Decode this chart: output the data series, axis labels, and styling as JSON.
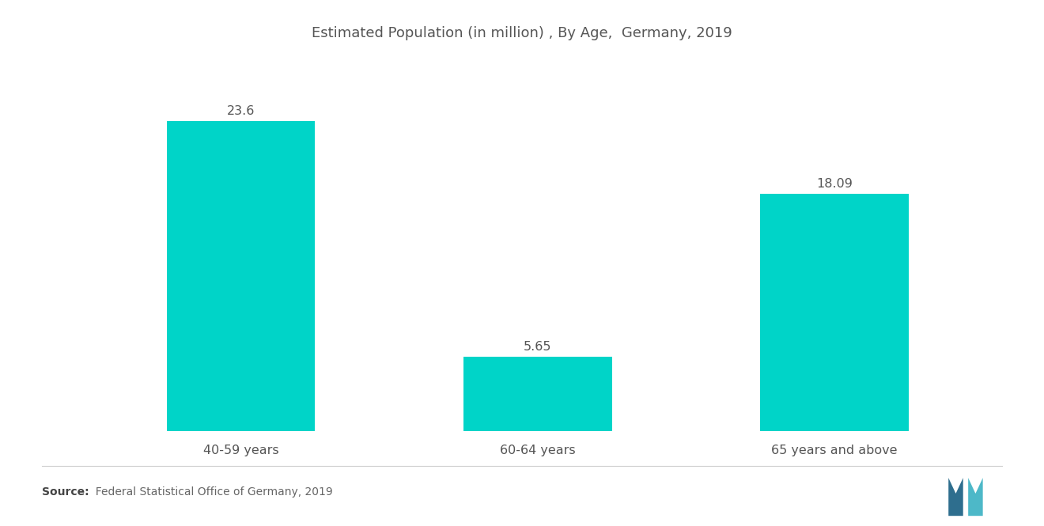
{
  "title": "Estimated Population (in million) , By Age,  Germany, 2019",
  "categories": [
    "40-59 years",
    "60-64 years",
    "65 years and above"
  ],
  "values": [
    23.6,
    5.65,
    18.09
  ],
  "bar_color": "#00D4C8",
  "value_labels": [
    "23.6",
    "5.65",
    "18.09"
  ],
  "source_text": "  Federal Statistical Office of Germany, 2019",
  "source_label": "Source:",
  "ylim": [
    0,
    28
  ],
  "title_fontsize": 13,
  "label_fontsize": 11.5,
  "value_fontsize": 11.5,
  "source_fontsize": 10,
  "background_color": "#ffffff",
  "bar_width": 0.5,
  "x_positions": [
    1,
    2,
    3
  ]
}
